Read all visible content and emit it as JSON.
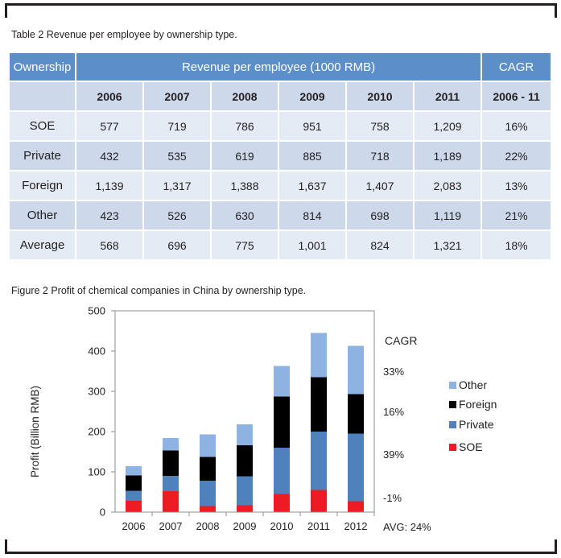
{
  "table": {
    "caption": "Table 2 Revenue per employee by ownership type.",
    "header": {
      "ownership": "Ownership",
      "revenue": "Revenue per employee (1000 RMB)",
      "cagr": "CAGR"
    },
    "years": [
      "2006",
      "2007",
      "2008",
      "2009",
      "2010",
      "2011"
    ],
    "cagr_period": "2006 - 11",
    "rows": [
      {
        "label": "SOE",
        "values": [
          "577",
          "719",
          "786",
          "951",
          "758",
          "1,209"
        ],
        "cagr": "16%"
      },
      {
        "label": "Private",
        "values": [
          "432",
          "535",
          "619",
          "885",
          "718",
          "1,189"
        ],
        "cagr": "22%"
      },
      {
        "label": "Foreign",
        "values": [
          "1,139",
          "1,317",
          "1,388",
          "1,637",
          "1,407",
          "2,083"
        ],
        "cagr": "13%"
      },
      {
        "label": "Other",
        "values": [
          "423",
          "526",
          "630",
          "814",
          "698",
          "1,119"
        ],
        "cagr": "21%"
      },
      {
        "label": "Average",
        "values": [
          "568",
          "696",
          "775",
          "1,001",
          "824",
          "1,321"
        ],
        "cagr": "18%"
      }
    ]
  },
  "figure": {
    "caption": "Figure 2 Profit of chemical companies in China by ownership type.",
    "cagr_title": "CAGR",
    "cagr_values": [
      "33%",
      "16%",
      "39%",
      "-1%"
    ],
    "cagr_avg": "AVG: 24%"
  },
  "chart_data": {
    "type": "bar",
    "stacked": true,
    "categories": [
      "2006",
      "2007",
      "2008",
      "2009",
      "2010",
      "2011",
      "2012"
    ],
    "series": [
      {
        "name": "SOE",
        "color": "#ed1c24",
        "values": [
          28,
          52,
          15,
          17,
          45,
          55,
          27
        ]
      },
      {
        "name": "Private",
        "color": "#4f81bd",
        "values": [
          25,
          38,
          63,
          72,
          115,
          145,
          168
        ]
      },
      {
        "name": "Foreign",
        "color": "#000000",
        "values": [
          38,
          63,
          59,
          77,
          127,
          135,
          98
        ]
      },
      {
        "name": "Other",
        "color": "#8db3e2",
        "values": [
          23,
          31,
          56,
          52,
          76,
          110,
          120
        ]
      }
    ],
    "ylabel": "Profit (Billion RMB)",
    "xlabel": "",
    "ylim": [
      0,
      500
    ],
    "yticks": [
      "0",
      "100",
      "200",
      "300",
      "400",
      "500"
    ],
    "legend_order": [
      "Other",
      "Foreign",
      "Private",
      "SOE"
    ],
    "legend_position": "right",
    "grid": false
  }
}
